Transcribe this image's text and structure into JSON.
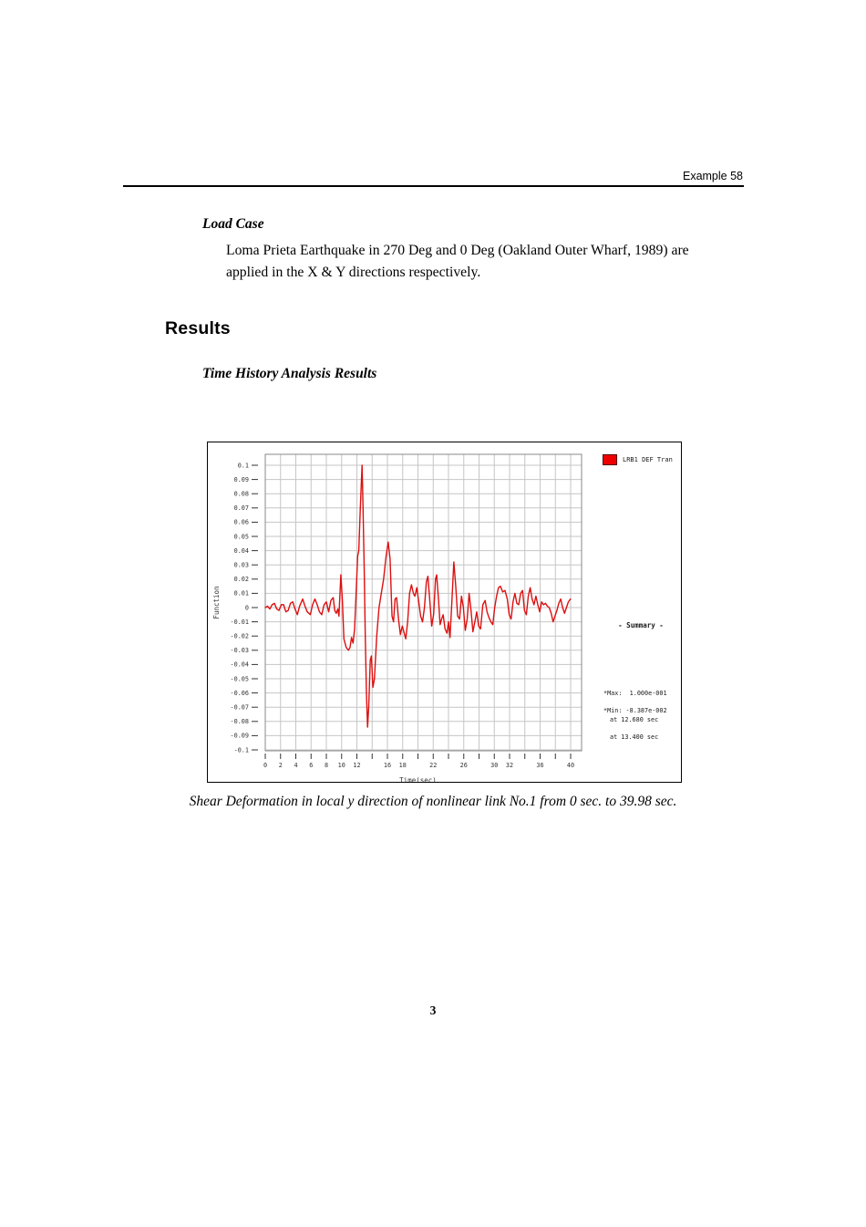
{
  "page": {
    "header": "Example 58",
    "page_number": "3"
  },
  "sections": {
    "load_case_heading": "Load Case",
    "load_case_body": "Loma Prieta Earthquake in 270 Deg and 0 Deg (Oakland Outer Wharf, 1989) are applied in the X & Y directions respectively.",
    "results_heading": "Results",
    "subsection_heading": "Time History Analysis Results",
    "caption": "Shear Deformation in local y direction of nonlinear link No.1 from 0 sec. to 39.98 sec."
  },
  "chart": {
    "legend_label": "LRB1 DEF Tran",
    "legend_color": "#ee0000",
    "summary_title": "- Summary -",
    "max_line1": "*Max:  1.000e-001",
    "max_line2": "at 12.680 sec",
    "min_line1": "*Min: -8.387e-002",
    "min_line2": "at 13.400 sec",
    "ylabel": "Function",
    "xlabel": "Time(sec)"
  },
  "chart_data": {
    "type": "line",
    "title": "",
    "xlabel": "Time(sec)",
    "ylabel": "Function",
    "xlim": [
      0,
      41.4
    ],
    "ylim": [
      -0.105,
      0.108
    ],
    "grid": true,
    "legend_position": "top-right",
    "line_color": "#dd0f0f",
    "grid_color": "#c6c6c6",
    "frame_color": "#8a8a8a",
    "tick_color": "#333333",
    "x_tick_values": [
      0,
      2,
      4,
      6,
      8,
      10,
      12,
      14,
      16,
      18,
      20,
      22,
      24,
      26,
      28,
      30,
      32,
      34,
      36,
      38,
      40
    ],
    "x_tick_labels": [
      "0",
      "2",
      "4",
      "6",
      "8",
      "10",
      "12",
      "",
      "16",
      "18",
      "",
      "22",
      "",
      "26",
      "",
      "30",
      "32",
      "",
      "36",
      "",
      "40"
    ],
    "y_tick_labels": [
      "0.1",
      "0.09",
      "0.08",
      "0.07",
      "0.06",
      "0.05",
      "0.04",
      "0.03",
      "0.02",
      "0.01",
      "0",
      "-0.01",
      "-0.02",
      "-0.03",
      "-0.04",
      "-0.05",
      "-0.06",
      "-0.07",
      "-0.08",
      "-0.09",
      "-0.1"
    ],
    "annotations": {
      "max": {
        "value": "1.000e-001",
        "time_sec": "12.680"
      },
      "min": {
        "value": "-8.387e-002",
        "time_sec": "13.400"
      }
    },
    "series": [
      {
        "name": "LRB1 DEF Tran",
        "points": [
          [
            0,
            0.0
          ],
          [
            0.3,
            0.001
          ],
          [
            0.6,
            -0.001
          ],
          [
            0.9,
            0.002
          ],
          [
            1.2,
            0.003
          ],
          [
            1.5,
            -0.001
          ],
          [
            1.8,
            -0.002
          ],
          [
            2.1,
            0.002
          ],
          [
            2.4,
            0.002
          ],
          [
            2.7,
            -0.003
          ],
          [
            3.0,
            -0.002
          ],
          [
            3.3,
            0.003
          ],
          [
            3.6,
            0.004
          ],
          [
            3.9,
            -0.001
          ],
          [
            4.2,
            -0.005
          ],
          [
            4.5,
            0.001
          ],
          [
            4.9,
            0.006
          ],
          [
            5.2,
            0.001
          ],
          [
            5.5,
            -0.003
          ],
          [
            5.9,
            -0.005
          ],
          [
            6.2,
            0.002
          ],
          [
            6.5,
            0.006
          ],
          [
            6.8,
            0.002
          ],
          [
            7.1,
            -0.003
          ],
          [
            7.4,
            -0.005
          ],
          [
            7.7,
            0.002
          ],
          [
            8.0,
            0.004
          ],
          [
            8.3,
            -0.003
          ],
          [
            8.6,
            0.005
          ],
          [
            8.9,
            0.007
          ],
          [
            9.1,
            -0.002
          ],
          [
            9.3,
            -0.004
          ],
          [
            9.5,
            -0.001
          ],
          [
            9.65,
            -0.006
          ],
          [
            9.9,
            0.023
          ],
          [
            10.1,
            0.005
          ],
          [
            10.3,
            -0.022
          ],
          [
            10.6,
            -0.028
          ],
          [
            10.9,
            -0.03
          ],
          [
            11.1,
            -0.028
          ],
          [
            11.3,
            -0.021
          ],
          [
            11.5,
            -0.025
          ],
          [
            11.7,
            -0.015
          ],
          [
            11.9,
            0.01
          ],
          [
            12.1,
            0.036
          ],
          [
            12.25,
            0.04
          ],
          [
            12.45,
            0.07
          ],
          [
            12.68,
            0.1
          ],
          [
            12.8,
            0.072
          ],
          [
            12.95,
            0.03
          ],
          [
            13.1,
            -0.02
          ],
          [
            13.25,
            -0.06
          ],
          [
            13.4,
            -0.084
          ],
          [
            13.55,
            -0.07
          ],
          [
            13.75,
            -0.037
          ],
          [
            13.9,
            -0.034
          ],
          [
            14.1,
            -0.056
          ],
          [
            14.3,
            -0.05
          ],
          [
            14.6,
            -0.02
          ],
          [
            14.9,
            0.0
          ],
          [
            15.2,
            0.01
          ],
          [
            15.5,
            0.02
          ],
          [
            15.8,
            0.035
          ],
          [
            16.1,
            0.046
          ],
          [
            16.35,
            0.034
          ],
          [
            16.6,
            -0.006
          ],
          [
            16.8,
            -0.01
          ],
          [
            17.0,
            0.006
          ],
          [
            17.2,
            0.007
          ],
          [
            17.45,
            -0.008
          ],
          [
            17.7,
            -0.019
          ],
          [
            17.95,
            -0.013
          ],
          [
            18.2,
            -0.018
          ],
          [
            18.4,
            -0.022
          ],
          [
            18.65,
            -0.01
          ],
          [
            18.9,
            0.01
          ],
          [
            19.15,
            0.016
          ],
          [
            19.4,
            0.01
          ],
          [
            19.6,
            0.008
          ],
          [
            19.85,
            0.014
          ],
          [
            20.1,
            0.004
          ],
          [
            20.35,
            -0.006
          ],
          [
            20.6,
            -0.01
          ],
          [
            20.85,
            0.0
          ],
          [
            21.1,
            0.018
          ],
          [
            21.3,
            0.022
          ],
          [
            21.55,
            0.005
          ],
          [
            21.8,
            -0.013
          ],
          [
            22.05,
            -0.005
          ],
          [
            22.3,
            0.02
          ],
          [
            22.45,
            0.023
          ],
          [
            22.7,
            0.005
          ],
          [
            22.9,
            -0.012
          ],
          [
            23.1,
            -0.008
          ],
          [
            23.3,
            -0.005
          ],
          [
            23.55,
            -0.015
          ],
          [
            23.8,
            -0.018
          ],
          [
            24.0,
            -0.01
          ],
          [
            24.2,
            -0.021
          ],
          [
            24.45,
            0.005
          ],
          [
            24.7,
            0.032
          ],
          [
            24.95,
            0.015
          ],
          [
            25.2,
            -0.006
          ],
          [
            25.45,
            -0.008
          ],
          [
            25.7,
            0.008
          ],
          [
            25.95,
            0.0
          ],
          [
            26.2,
            -0.016
          ],
          [
            26.45,
            -0.008
          ],
          [
            26.7,
            0.01
          ],
          [
            26.95,
            -0.002
          ],
          [
            27.2,
            -0.017
          ],
          [
            27.45,
            -0.01
          ],
          [
            27.7,
            -0.003
          ],
          [
            27.95,
            -0.013
          ],
          [
            28.2,
            -0.015
          ],
          [
            28.5,
            0.002
          ],
          [
            28.8,
            0.005
          ],
          [
            29.05,
            -0.003
          ],
          [
            29.3,
            -0.007
          ],
          [
            29.55,
            -0.01
          ],
          [
            29.8,
            -0.012
          ],
          [
            30.05,
            0.0
          ],
          [
            30.3,
            0.008
          ],
          [
            30.55,
            0.014
          ],
          [
            30.8,
            0.015
          ],
          [
            31.1,
            0.011
          ],
          [
            31.4,
            0.012
          ],
          [
            31.7,
            0.006
          ],
          [
            31.95,
            -0.005
          ],
          [
            32.2,
            -0.008
          ],
          [
            32.45,
            0.004
          ],
          [
            32.7,
            0.01
          ],
          [
            32.95,
            0.003
          ],
          [
            33.2,
            0.002
          ],
          [
            33.45,
            0.01
          ],
          [
            33.7,
            0.012
          ],
          [
            33.95,
            -0.002
          ],
          [
            34.2,
            -0.005
          ],
          [
            34.45,
            0.008
          ],
          [
            34.7,
            0.014
          ],
          [
            34.95,
            0.006
          ],
          [
            35.2,
            0.002
          ],
          [
            35.45,
            0.008
          ],
          [
            35.7,
            0.002
          ],
          [
            35.95,
            -0.003
          ],
          [
            36.2,
            0.004
          ],
          [
            36.45,
            0.002
          ],
          [
            36.7,
            0.003
          ],
          [
            36.95,
            0.001
          ],
          [
            37.2,
            0.0
          ],
          [
            37.45,
            -0.004
          ],
          [
            37.7,
            -0.01
          ],
          [
            37.95,
            -0.006
          ],
          [
            38.2,
            -0.002
          ],
          [
            38.45,
            0.003
          ],
          [
            38.7,
            0.006
          ],
          [
            38.95,
            0.0
          ],
          [
            39.2,
            -0.004
          ],
          [
            39.45,
            0.0
          ],
          [
            39.7,
            0.004
          ],
          [
            39.98,
            0.006
          ]
        ]
      }
    ]
  }
}
